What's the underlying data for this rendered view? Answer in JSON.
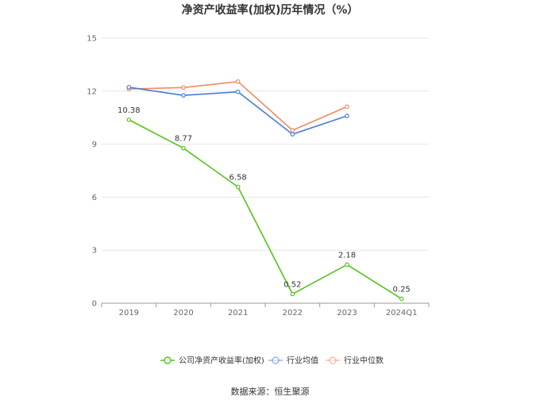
{
  "chart_data": {
    "type": "line",
    "title": "净资产收益率(加权)历年情况（%）",
    "categories": [
      "2019",
      "2020",
      "2021",
      "2022",
      "2023",
      "2024Q1"
    ],
    "yticks": [
      "0",
      "3",
      "6",
      "9",
      "12",
      "15"
    ],
    "ylim": [
      0,
      15
    ],
    "grid": true,
    "legend_position": "bottom",
    "series": [
      {
        "name": "公司净资产收益率(加权)",
        "color": "#52c41a",
        "values": [
          10.38,
          8.77,
          6.58,
          0.52,
          2.18,
          0.25
        ],
        "labels": [
          "10.38",
          "8.77",
          "6.58",
          "0.52",
          "2.18",
          "0.25"
        ]
      },
      {
        "name": "行业均值",
        "color": "#4a7bd6",
        "values": [
          12.22,
          11.76,
          11.96,
          9.56,
          10.6,
          null
        ]
      },
      {
        "name": "行业中位数",
        "color": "#f08a5d",
        "values": [
          12.12,
          12.2,
          12.54,
          9.78,
          11.12,
          null
        ]
      }
    ],
    "source": "数据来源：恒生聚源"
  }
}
